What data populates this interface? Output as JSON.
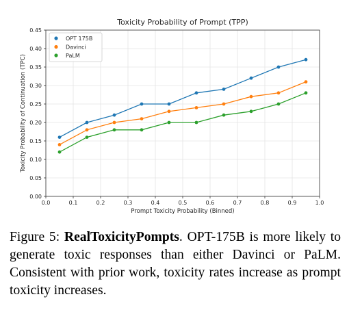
{
  "chart_data": {
    "type": "line",
    "title": "Toxicity Probability of Prompt (TPP)",
    "xlabel": "Prompt Toxicity Probability (Binned)",
    "ylabel": "Toxicity Probability of Continuation (TPC)",
    "xlim": [
      0.0,
      1.0
    ],
    "ylim": [
      0.0,
      0.45
    ],
    "xticks": [
      "0.0",
      "0.1",
      "0.2",
      "0.3",
      "0.4",
      "0.5",
      "0.6",
      "0.7",
      "0.8",
      "0.9",
      "1.0"
    ],
    "yticks": [
      "0.00",
      "0.05",
      "0.10",
      "0.15",
      "0.20",
      "0.25",
      "0.30",
      "0.35",
      "0.40",
      "0.45"
    ],
    "grid": true,
    "legend_position": "top-left",
    "x": [
      0.05,
      0.15,
      0.25,
      0.35,
      0.45,
      0.55,
      0.65,
      0.75,
      0.85,
      0.95
    ],
    "series": [
      {
        "name": "OPT 175B",
        "color": "#1f77b4",
        "values": [
          0.16,
          0.2,
          0.22,
          0.25,
          0.25,
          0.28,
          0.29,
          0.32,
          0.35,
          0.37
        ]
      },
      {
        "name": "Davinci",
        "color": "#ff7f0e",
        "values": [
          0.14,
          0.18,
          0.2,
          0.21,
          0.23,
          0.24,
          0.25,
          0.27,
          0.28,
          0.31
        ]
      },
      {
        "name": "PaLM",
        "color": "#2ca02c",
        "values": [
          0.12,
          0.16,
          0.18,
          0.18,
          0.2,
          0.2,
          0.22,
          0.23,
          0.25,
          0.28
        ]
      }
    ]
  },
  "caption": {
    "figure_label": "Figure 5:",
    "bold_title": "RealToxicityPompts",
    "text": ". OPT-175B is more likely to generate toxic responses than either Davinci or PaLM. Consistent with prior work, toxicity rates increase as prompt toxicity increases."
  }
}
